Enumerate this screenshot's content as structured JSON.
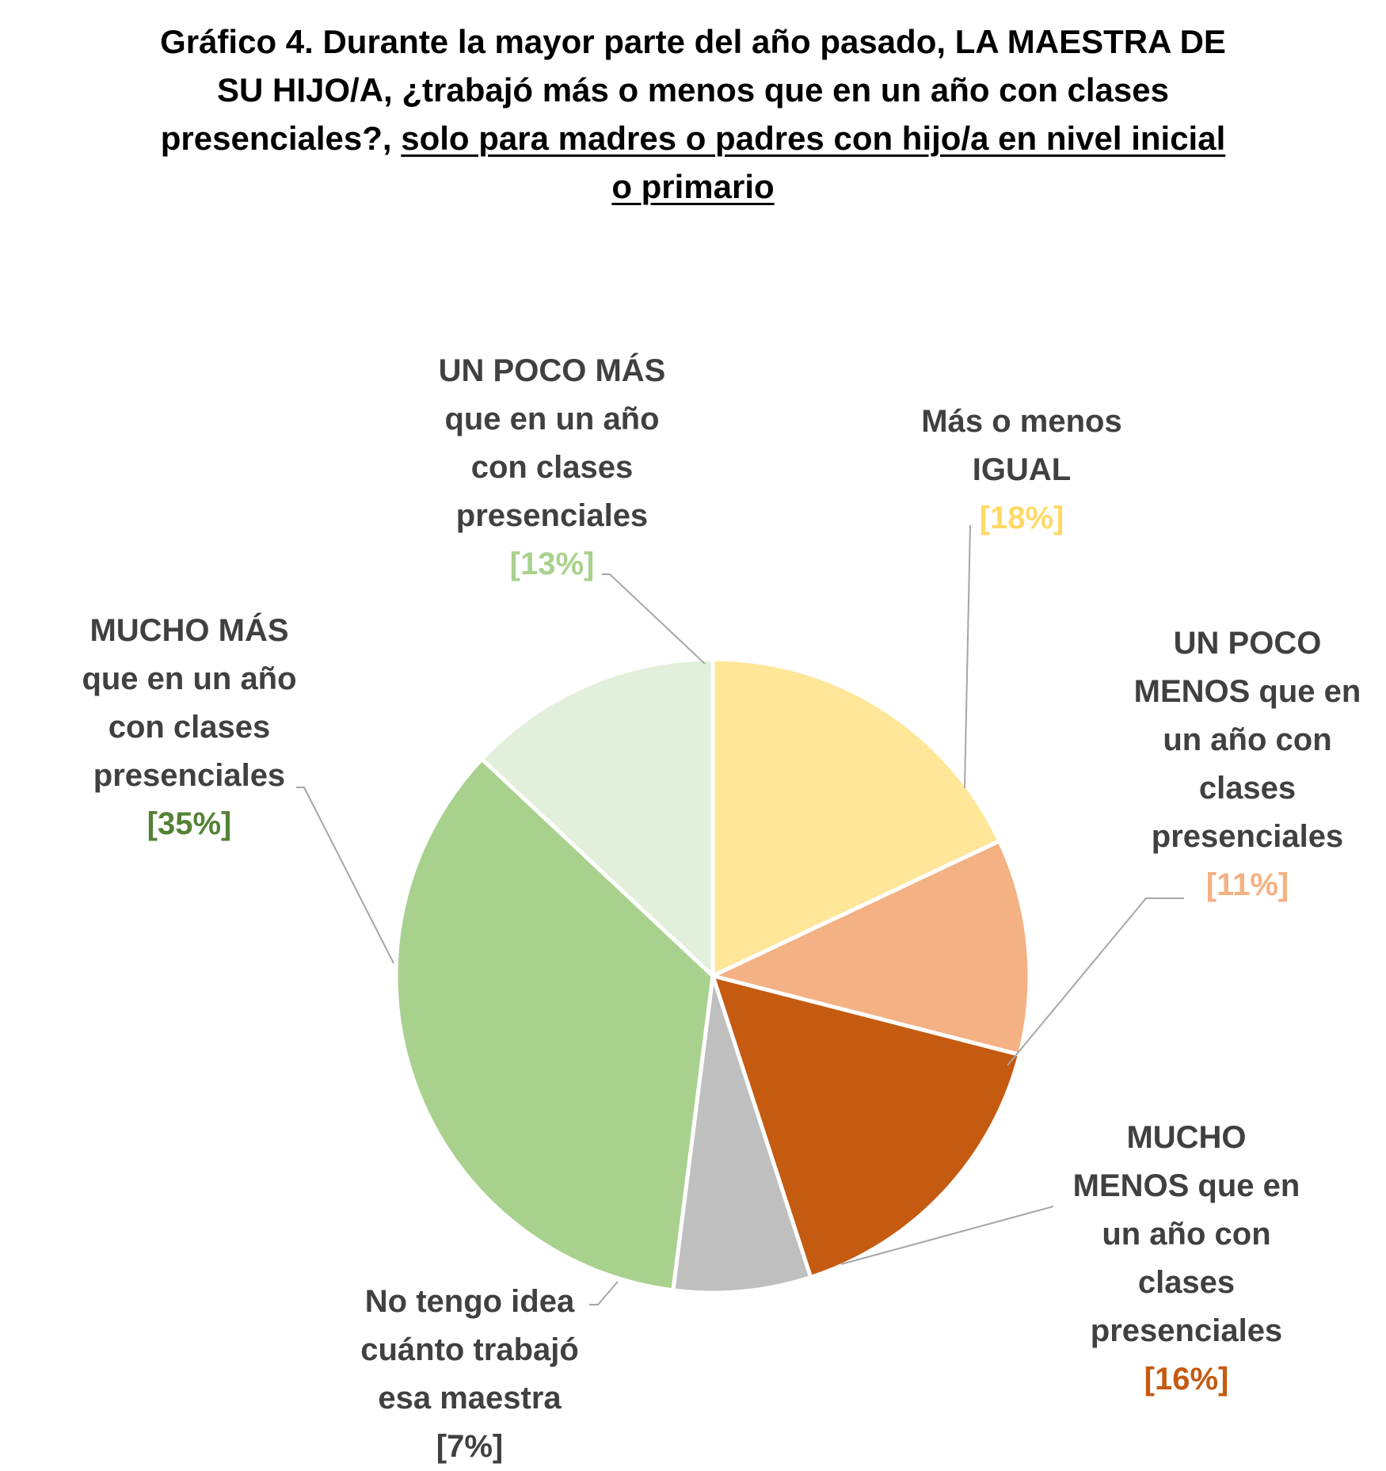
{
  "title": {
    "line1": "Gráfico 4. Durante la mayor parte del año pasado, LA MAESTRA DE",
    "line2": "SU HIJO/A, ¿trabajó más o menos que en un año con clases",
    "line3_plain": "presenciales?, ",
    "line3_underlined": "solo para madres o padres con hijo/a en nivel inicial",
    "line4_underlined": "o primario"
  },
  "chart_data": {
    "type": "pie",
    "start_angle_deg": 0,
    "direction": "clockwise",
    "series": [
      {
        "name": "Más o menos IGUAL",
        "label_lines": [
          "Más o menos",
          "IGUAL"
        ],
        "value": 18,
        "value_label": "[18%]",
        "color": "#FFE699",
        "label_color": "#FFD966"
      },
      {
        "name": "UN POCO MENOS que en un año con clases presenciales",
        "label_lines": [
          "UN POCO",
          "MENOS que en",
          "un año con",
          "clases",
          "presenciales"
        ],
        "value": 11,
        "value_label": "[11%]",
        "color": "#F4B183",
        "label_color": "#F4B183"
      },
      {
        "name": "MUCHO MENOS que en un año con clases presenciales",
        "label_lines": [
          "MUCHO",
          "MENOS que en",
          "un año con",
          "clases",
          "presenciales"
        ],
        "value": 16,
        "value_label": "[16%]",
        "color": "#C55A11",
        "label_color": "#C55A11"
      },
      {
        "name": "No tengo idea cuánto trabajó esa maestra",
        "label_lines": [
          "No tengo idea",
          "cuánto trabajó",
          "esa maestra"
        ],
        "value": 7,
        "value_label": "[7%]",
        "color": "#BFBFBF",
        "label_color": "#404040"
      },
      {
        "name": "MUCHO MÁS que en un año con clases presenciales",
        "label_lines": [
          "MUCHO MÁS",
          "que en un año",
          "con clases",
          "presenciales"
        ],
        "value": 35,
        "value_label": "[35%]",
        "color": "#A9D18E",
        "label_color": "#548235"
      },
      {
        "name": "UN POCO MÁS que en un año con clases presenciales",
        "label_lines": [
          "UN POCO MÁS",
          "que en un año",
          "con clases",
          "presenciales"
        ],
        "value": 13,
        "value_label": "[13%]",
        "color": "#E2EFDA",
        "label_color": "#A9D18E"
      }
    ]
  }
}
